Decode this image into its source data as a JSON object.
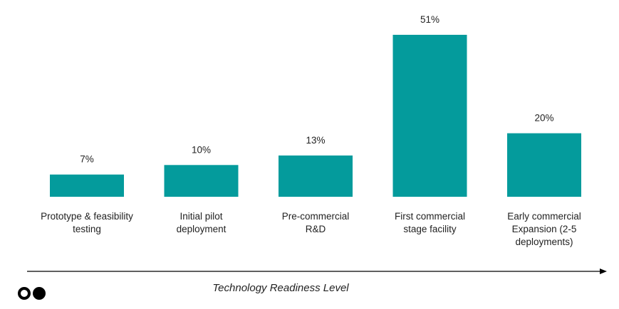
{
  "chart_data": {
    "type": "bar",
    "categories": [
      [
        "Prototype & feasibility",
        "testing"
      ],
      [
        "Initial pilot",
        "deployment"
      ],
      [
        "Pre-commercial",
        "R&D"
      ],
      [
        "First commercial",
        "stage facility"
      ],
      [
        "Early commercial",
        "Expansion (2-5",
        "deployments)"
      ]
    ],
    "values": [
      7,
      10,
      13,
      51,
      20
    ],
    "value_labels": [
      "7%",
      "10%",
      "13%",
      "51%",
      "20%"
    ],
    "xlabel": "Technology Readiness Level",
    "ylabel": "",
    "ylim": [
      0,
      51
    ],
    "grid": false,
    "bar_color": "#049b9c",
    "text_color": "#222222",
    "axis_color": "#000000"
  },
  "logo": {
    "name": "two-dots-logo-icon",
    "color": "#000000"
  }
}
